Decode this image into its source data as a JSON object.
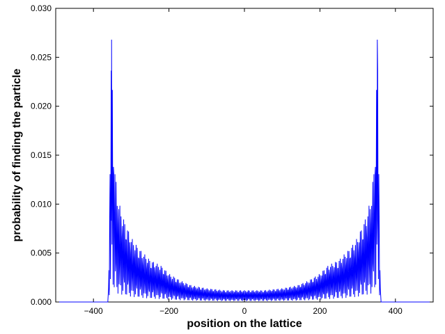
{
  "chart_data": {
    "type": "line",
    "title": "",
    "xlabel": "position on the lattice",
    "ylabel": "probability of finding the particle",
    "xlim": [
      -500,
      500
    ],
    "ylim": [
      0,
      0.03
    ],
    "x_ticks": [
      -400,
      -200,
      0,
      200,
      400
    ],
    "x_tick_labels": [
      "−400",
      "−200",
      "0",
      "200",
      "400"
    ],
    "y_ticks": [
      0,
      0.005,
      0.01,
      0.015,
      0.02,
      0.025,
      0.03
    ],
    "y_tick_labels": [
      "0.000",
      "0.005",
      "0.010",
      "0.015",
      "0.020",
      "0.025",
      "0.030"
    ],
    "grid": false,
    "legend": "none",
    "series": [
      {
        "color": "#0000ff",
        "support": [
          -360,
          360
        ],
        "peaks": [
          {
            "x": -352,
            "y": 0.0268
          },
          {
            "x": 352,
            "y": 0.0268
          }
        ],
        "envelope": {
          "x": [
            -360,
            -357,
            -352,
            -348,
            -343,
            -335,
            -320,
            -300,
            -280,
            -250,
            -220,
            -200,
            -170,
            -140,
            -100,
            -50,
            0,
            50,
            100,
            140,
            170,
            200,
            220,
            250,
            280,
            300,
            320,
            335,
            343,
            348,
            352,
            357,
            360
          ],
          "y": [
            0.0015,
            0.012,
            0.0268,
            0.018,
            0.0135,
            0.0105,
            0.0085,
            0.0066,
            0.0055,
            0.0043,
            0.0037,
            0.0029,
            0.0022,
            0.0017,
            0.0014,
            0.0012,
            0.0012,
            0.0012,
            0.0014,
            0.0017,
            0.0022,
            0.0029,
            0.0037,
            0.0043,
            0.0055,
            0.0066,
            0.0085,
            0.0105,
            0.0135,
            0.018,
            0.0268,
            0.012,
            0.0015
          ]
        }
      }
    ]
  }
}
